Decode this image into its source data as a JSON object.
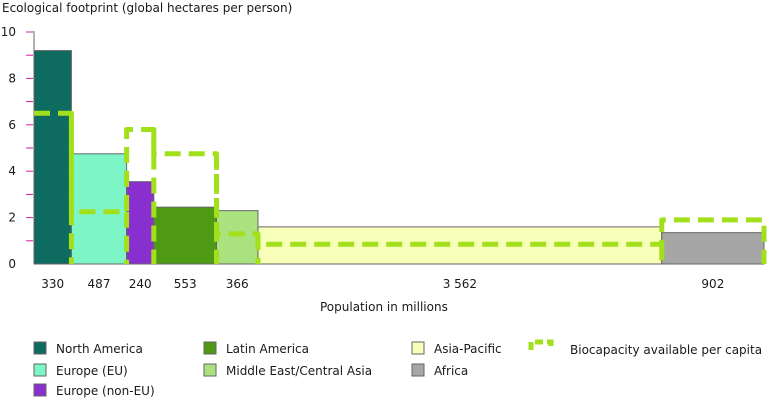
{
  "chart_data": {
    "type": "bar",
    "title": "Ecological footprint  (global hectares per person)",
    "xlabel": "Population in millions",
    "ylabel": "",
    "ylim": [
      0,
      10
    ],
    "y_ticks": [
      0,
      2,
      4,
      6,
      8,
      10
    ],
    "series": [
      {
        "name": "Ecological footprint",
        "regions": [
          {
            "name": "North America",
            "population": 330,
            "population_label": "330",
            "footprint": 9.2,
            "biocapacity": 6.5,
            "color": "#0d6b60"
          },
          {
            "name": "Europe (EU)",
            "population": 487,
            "population_label": "487",
            "footprint": 4.75,
            "biocapacity": 2.25,
            "color": "#7df5c6"
          },
          {
            "name": "Europe (non-EU)",
            "population": 240,
            "population_label": "240",
            "footprint": 3.55,
            "biocapacity": 5.8,
            "color": "#8a2fcf"
          },
          {
            "name": "Latin America",
            "population": 553,
            "population_label": "553",
            "footprint": 2.45,
            "biocapacity": 4.75,
            "color": "#4f9a14"
          },
          {
            "name": "Middle East/Central Asia",
            "population": 366,
            "population_label": "366",
            "footprint": 2.3,
            "biocapacity": 1.3,
            "color": "#a9e27f"
          },
          {
            "name": "Asia-Pacific",
            "population": 3562,
            "population_label": "3 562",
            "footprint": 1.6,
            "biocapacity": 0.85,
            "color": "#f8ffb9"
          },
          {
            "name": "Africa",
            "population": 902,
            "population_label": "902",
            "footprint": 1.35,
            "biocapacity": 1.9,
            "color": "#a6a6a6"
          }
        ]
      },
      {
        "name": "Biocapacity available per capita",
        "color": "#a2e01b"
      }
    ],
    "legend": {
      "placement": "bottom",
      "items": [
        {
          "label": "North America",
          "color": "#0d6b60"
        },
        {
          "label": "Europe (EU)",
          "color": "#7df5c6"
        },
        {
          "label": "Europe (non-EU)",
          "color": "#8a2fcf"
        },
        {
          "label": "Latin America",
          "color": "#4f9a14"
        },
        {
          "label": "Middle East/Central Asia",
          "color": "#a9e27f"
        },
        {
          "label": "Asia-Pacific",
          "color": "#f8ffb9"
        },
        {
          "label": "Africa",
          "color": "#a6a6a6"
        },
        {
          "label": "Biocapacity available per capita",
          "color": "#a2e01b",
          "style": "dashed"
        }
      ]
    }
  }
}
